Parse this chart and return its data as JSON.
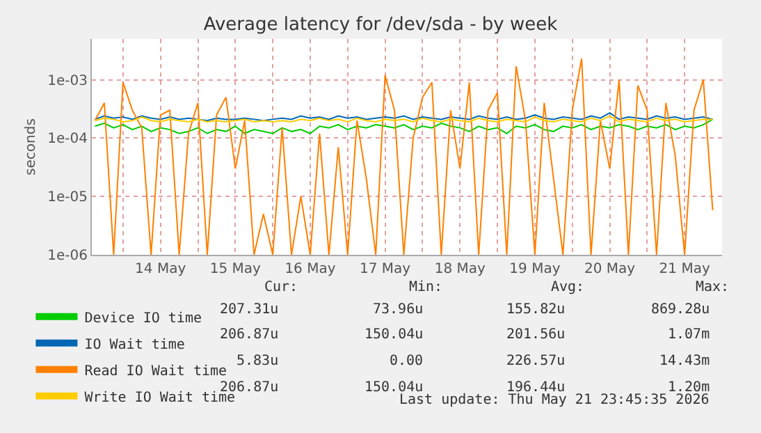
{
  "chart_data": {
    "type": "line",
    "title": "Average latency for /dev/sda - by week",
    "ylabel": "seconds",
    "x": [
      "2026-05-13T15:00",
      "2026-05-13T18:00",
      "2026-05-13T21:00",
      "2026-05-14T00:00",
      "2026-05-14T03:00",
      "2026-05-14T06:00",
      "2026-05-14T09:00",
      "2026-05-14T12:00",
      "2026-05-14T15:00",
      "2026-05-14T18:00",
      "2026-05-14T21:00",
      "2026-05-15T00:00",
      "2026-05-15T03:00",
      "2026-05-15T06:00",
      "2026-05-15T09:00",
      "2026-05-15T12:00",
      "2026-05-15T15:00",
      "2026-05-15T18:00",
      "2026-05-15T21:00",
      "2026-05-16T00:00",
      "2026-05-16T03:00",
      "2026-05-16T06:00",
      "2026-05-16T09:00",
      "2026-05-16T12:00",
      "2026-05-16T15:00",
      "2026-05-16T18:00",
      "2026-05-16T21:00",
      "2026-05-17T00:00",
      "2026-05-17T03:00",
      "2026-05-17T06:00",
      "2026-05-17T09:00",
      "2026-05-17T12:00",
      "2026-05-17T15:00",
      "2026-05-17T18:00",
      "2026-05-17T21:00",
      "2026-05-18T00:00",
      "2026-05-18T03:00",
      "2026-05-18T06:00",
      "2026-05-18T09:00",
      "2026-05-18T12:00",
      "2026-05-18T15:00",
      "2026-05-18T18:00",
      "2026-05-18T21:00",
      "2026-05-19T00:00",
      "2026-05-19T03:00",
      "2026-05-19T06:00",
      "2026-05-19T09:00",
      "2026-05-19T12:00",
      "2026-05-19T15:00",
      "2026-05-19T18:00",
      "2026-05-19T21:00",
      "2026-05-20T00:00",
      "2026-05-20T03:00",
      "2026-05-20T06:00",
      "2026-05-20T09:00",
      "2026-05-20T12:00",
      "2026-05-20T15:00",
      "2026-05-20T18:00",
      "2026-05-20T21:00",
      "2026-05-21T00:00",
      "2026-05-21T03:00",
      "2026-05-21T06:00",
      "2026-05-21T09:00",
      "2026-05-21T12:00",
      "2026-05-21T15:00",
      "2026-05-21T18:00",
      "2026-05-21T21:00"
    ],
    "series": [
      {
        "name": "Device IO time",
        "color": "#00cc00",
        "values": [
          0.00016,
          0.00018,
          0.00015,
          0.00017,
          0.00014,
          0.00016,
          0.00013,
          0.00015,
          0.00014,
          0.00012,
          0.00013,
          0.00015,
          0.00012,
          0.00014,
          0.00013,
          0.00016,
          0.00012,
          0.00014,
          0.00013,
          0.00012,
          0.00015,
          0.00013,
          0.00014,
          0.00012,
          0.00016,
          0.00015,
          0.00017,
          0.00014,
          0.00016,
          0.00015,
          0.00017,
          0.00016,
          0.00015,
          0.00017,
          0.00014,
          0.00016,
          0.00015,
          0.00018,
          0.00016,
          0.00015,
          0.00013,
          0.00016,
          0.00014,
          0.00015,
          0.00012,
          0.00016,
          0.00015,
          0.00017,
          0.00014,
          0.00013,
          0.00016,
          0.00015,
          0.00017,
          0.00014,
          0.00016,
          0.00015,
          0.00017,
          0.00016,
          0.00014,
          0.00016,
          0.00015,
          0.00017,
          0.00014,
          0.00016,
          0.00015,
          0.00017,
          0.00021
        ]
      },
      {
        "name": "IO Wait time",
        "color": "#0066b3",
        "values": [
          0.00021,
          0.00024,
          0.00022,
          0.00023,
          0.00021,
          0.00024,
          0.00022,
          0.00021,
          0.00023,
          0.00021,
          0.00022,
          0.00021,
          0.0002,
          0.00022,
          0.00021,
          0.00021,
          0.00022,
          0.00021,
          0.0002,
          0.00021,
          0.00022,
          0.00021,
          0.00024,
          0.00022,
          0.00023,
          0.00021,
          0.00024,
          0.00022,
          0.00023,
          0.00021,
          0.00022,
          0.00023,
          0.00022,
          0.00024,
          0.00021,
          0.00023,
          0.00022,
          0.00021,
          0.00023,
          0.00022,
          0.00021,
          0.00024,
          0.00022,
          0.00021,
          0.00023,
          0.00021,
          0.00022,
          0.00025,
          0.00022,
          0.00021,
          0.00023,
          0.00022,
          0.00021,
          0.00024,
          0.00022,
          0.00027,
          0.00021,
          0.00023,
          0.00022,
          0.00021,
          0.00024,
          0.00022,
          0.00023,
          0.00021,
          0.00022,
          0.00023,
          0.00021
        ]
      },
      {
        "name": "Read IO Wait time",
        "color": "#ff8000",
        "values": [
          0.0002,
          0.0004,
          1e-06,
          0.0009,
          0.0003,
          0.00015,
          1e-06,
          0.00025,
          0.0003,
          1e-06,
          0.00012,
          0.0004,
          1e-06,
          0.00025,
          0.0005,
          3e-05,
          0.0002,
          1e-06,
          5e-06,
          1e-06,
          0.00015,
          1e-06,
          1e-05,
          1e-06,
          0.00012,
          1e-06,
          7e-05,
          1e-06,
          0.0002,
          2e-05,
          1e-06,
          0.0012,
          0.0003,
          1e-06,
          0.0001,
          0.0005,
          0.0009,
          1e-06,
          0.0003,
          3e-05,
          0.0009,
          1e-06,
          0.0003,
          0.0006,
          1e-06,
          0.0017,
          0.0002,
          1e-06,
          0.0004,
          2e-05,
          1e-06,
          0.0003,
          0.0023,
          1e-06,
          0.0002,
          3e-05,
          0.001,
          1e-06,
          0.0008,
          0.0003,
          1e-06,
          0.0004,
          5e-05,
          1e-06,
          0.0003,
          0.001,
          5.8e-06
        ]
      },
      {
        "name": "Write IO Wait time",
        "color": "#ffcc00",
        "values": [
          0.0002,
          0.00022,
          0.00021,
          0.00019,
          0.0002,
          0.00023,
          0.0002,
          0.00019,
          0.00021,
          0.0002,
          0.00019,
          0.00021,
          0.00019,
          0.0002,
          0.00019,
          0.0002,
          0.00021,
          0.00019,
          0.0002,
          0.00019,
          0.0002,
          0.00019,
          0.00021,
          0.0002,
          0.00022,
          0.0002,
          0.00021,
          0.00019,
          0.00022,
          0.0002,
          0.00019,
          0.00021,
          0.0002,
          0.00021,
          0.00019,
          0.00022,
          0.0002,
          0.00019,
          0.00021,
          0.0002,
          0.00019,
          0.00022,
          0.0002,
          0.00019,
          0.00021,
          0.0002,
          0.00019,
          0.00023,
          0.0002,
          0.00019,
          0.00021,
          0.0002,
          0.00019,
          0.00022,
          0.0002,
          0.00024,
          0.00019,
          0.00021,
          0.0002,
          0.00019,
          0.00022,
          0.0002,
          0.00021,
          0.00019,
          0.0002,
          0.00021,
          0.00021
        ]
      }
    ],
    "log": "y",
    "ylim": [
      1e-06,
      0.005
    ],
    "yticks": [
      {
        "value": 1e-06,
        "label": "1e-06"
      },
      {
        "value": 1e-05,
        "label": "1e-05"
      },
      {
        "value": 0.0001,
        "label": "1e-04"
      },
      {
        "value": 0.001,
        "label": "1e-03"
      }
    ],
    "xlim": [
      "2026-05-13T14:00",
      "2026-05-22T00:00"
    ],
    "xticks": [
      {
        "value": "2026-05-14T00:00",
        "label": null
      },
      {
        "value": "2026-05-14T12:00",
        "label": "14 May"
      },
      {
        "value": "2026-05-15T00:00",
        "label": null
      },
      {
        "value": "2026-05-15T12:00",
        "label": "15 May"
      },
      {
        "value": "2026-05-16T00:00",
        "label": null
      },
      {
        "value": "2026-05-16T12:00",
        "label": "16 May"
      },
      {
        "value": "2026-05-17T00:00",
        "label": null
      },
      {
        "value": "2026-05-17T12:00",
        "label": "17 May"
      },
      {
        "value": "2026-05-18T00:00",
        "label": null
      },
      {
        "value": "2026-05-18T12:00",
        "label": "18 May"
      },
      {
        "value": "2026-05-19T00:00",
        "label": null
      },
      {
        "value": "2026-05-19T12:00",
        "label": "19 May"
      },
      {
        "value": "2026-05-20T00:00",
        "label": null
      },
      {
        "value": "2026-05-20T12:00",
        "label": "20 May"
      },
      {
        "value": "2026-05-21T00:00",
        "label": null
      },
      {
        "value": "2026-05-21T12:00",
        "label": "21 May"
      },
      {
        "value": "2026-05-22T00:00",
        "label": null
      }
    ],
    "grid": true,
    "legend": "bottom left",
    "line_style": "solid",
    "marker": "none",
    "annotations": [
      "Cur:",
      "Min:",
      "Avg:",
      "Max:",
      "207.31u",
      "73.96u",
      "155.82u",
      "869.28u",
      "206.87u",
      "150.04u",
      "201.56u",
      "1.07m",
      "5.83u",
      "0.00",
      "226.57u",
      "14.43m",
      "206.87u",
      "150.04u",
      "196.44u",
      "1.20m",
      "Last update: Thu May 21 23:45:35 2026"
    ]
  }
}
